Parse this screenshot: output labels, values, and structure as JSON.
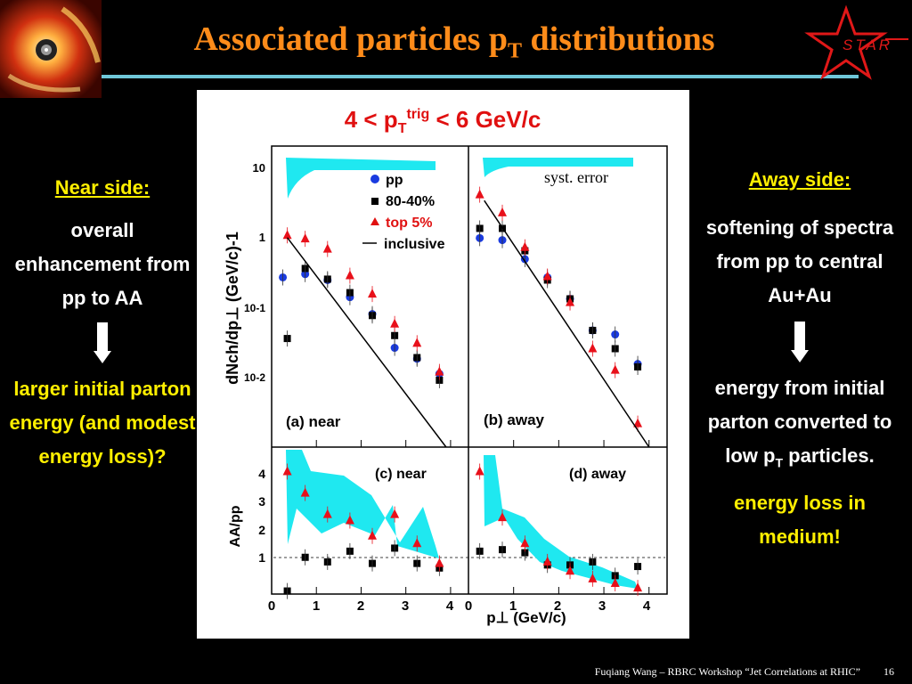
{
  "title": {
    "main": "Associated particles p",
    "sub": "T",
    "rest": " distributions"
  },
  "logo_text": "STAR",
  "near_side": {
    "heading": "Near side:",
    "text1": "overall enhancement from pp to AA",
    "text2": "larger initial parton energy (and modest energy loss)?"
  },
  "away_side": {
    "heading": "Away side:",
    "text1": "softening of spectra from pp to central Au+Au",
    "text2a": "energy from initial parton converted to low p",
    "text2sub": "T",
    "text2b": " particles.",
    "text3": "energy loss in medium!"
  },
  "footer": {
    "text": "Fuqiang Wang – RBRC Workshop “Jet Correlations at RHIC”",
    "page": "16"
  },
  "figure": {
    "title_main": "4 < p",
    "title_sub": "T",
    "title_sup": "trig",
    "title_rest": " < 6 GeV/c",
    "syst_label": "syst. error",
    "ylabel_top": "dNch/dp⊥ (GeV/c)-1",
    "ylabel_bottom": "AA/pp",
    "xlabel": "p⊥ (GeV/c)",
    "panel_labels": [
      "(a) near",
      "(b) away",
      "(c) near",
      "(d) away"
    ],
    "top_ticks": [
      "10",
      "1",
      "10-1",
      "10-2"
    ],
    "bottom_ticks": [
      "1",
      "2",
      "3",
      "4"
    ],
    "x_ticks": [
      "0",
      "1",
      "2",
      "3",
      "4"
    ],
    "legend": [
      "pp",
      "80-40%",
      "top 5%",
      "inclusive"
    ],
    "colors": {
      "pp": "#1a3be0",
      "mid": "#000000",
      "top5": "#e8101a",
      "band": "#1fe8f0"
    }
  },
  "chart_data": [
    {
      "type": "scatter",
      "panel": "(a) near",
      "xlabel": "p⊥ (GeV/c)",
      "ylabel": "dNch/dp⊥ (GeV/c)-1",
      "yscale": "log",
      "xlim": [
        0,
        4.4
      ],
      "ylim": [
        0.0015,
        25
      ],
      "series": [
        {
          "name": "pp",
          "x": [
            0.25,
            0.75,
            1.25,
            1.75,
            2.25,
            2.75,
            3.25,
            3.75
          ],
          "y": [
            0.36,
            0.4,
            0.33,
            0.19,
            0.11,
            0.037,
            0.026,
            0.016
          ]
        },
        {
          "name": "80-40%",
          "x": [
            0.35,
            0.75,
            1.25,
            1.75,
            2.25,
            2.75,
            3.25,
            3.75
          ],
          "y": [
            0.05,
            0.48,
            0.34,
            0.22,
            0.105,
            0.055,
            0.027,
            0.013
          ]
        },
        {
          "name": "top 5%",
          "x": [
            0.35,
            0.75,
            1.25,
            1.75,
            2.25,
            2.75,
            3.25,
            3.75
          ],
          "y": [
            1.4,
            1.25,
            0.9,
            0.38,
            0.21,
            0.08,
            0.043,
            0.017
          ]
        },
        {
          "name": "inclusive",
          "type": "line",
          "x": [
            0.35,
            3.9
          ],
          "y": [
            1.3,
            0.0015
          ]
        }
      ]
    },
    {
      "type": "scatter",
      "panel": "(b) away",
      "xlabel": "p⊥ (GeV/c)",
      "yscale": "log",
      "xlim": [
        0,
        4.4
      ],
      "ylim": [
        0.0015,
        25
      ],
      "series": [
        {
          "name": "pp",
          "x": [
            0.25,
            0.75,
            1.25,
            1.75,
            2.25,
            2.75,
            3.25,
            3.75
          ],
          "y": [
            1.28,
            1.2,
            0.65,
            0.36,
            0.18,
            0.065,
            0.057,
            0.022
          ]
        },
        {
          "name": "80-40%",
          "x": [
            0.25,
            0.75,
            1.25,
            1.75,
            2.25,
            2.75,
            3.25,
            3.75
          ],
          "y": [
            1.75,
            1.75,
            0.85,
            0.33,
            0.18,
            0.065,
            0.036,
            0.02
          ]
        },
        {
          "name": "top 5%",
          "x": [
            0.25,
            0.75,
            1.25,
            1.75,
            2.25,
            2.75,
            3.25,
            3.75
          ],
          "y": [
            5.2,
            2.9,
            0.95,
            0.37,
            0.16,
            0.036,
            0.018,
            0.0032
          ]
        },
        {
          "name": "inclusive",
          "type": "line",
          "x": [
            0.35,
            4.0
          ],
          "y": [
            4.3,
            0.0015
          ]
        }
      ]
    },
    {
      "type": "scatter",
      "panel": "(c) near",
      "ylabel": "AA/pp",
      "xlim": [
        0,
        4.4
      ],
      "ylim": [
        0,
        4.8
      ],
      "series": [
        {
          "name": "80-40%",
          "x": [
            0.35,
            0.75,
            1.25,
            1.75,
            2.25,
            2.75,
            3.25,
            3.75
          ],
          "y": [
            0.1,
            1.2,
            1.05,
            1.4,
            1.0,
            1.5,
            1.0,
            0.85
          ]
        },
        {
          "name": "top 5%",
          "x": [
            0.35,
            0.75,
            1.25,
            1.75,
            2.25,
            2.75,
            3.25,
            3.75
          ],
          "y": [
            4.0,
            3.3,
            2.6,
            2.4,
            1.9,
            2.6,
            1.65,
            1.0
          ]
        }
      ]
    },
    {
      "type": "scatter",
      "panel": "(d) away",
      "xlim": [
        0,
        4.4
      ],
      "ylim": [
        0,
        4.8
      ],
      "series": [
        {
          "name": "80-40%",
          "x": [
            0.25,
            0.75,
            1.25,
            1.75,
            2.25,
            2.75,
            3.25,
            3.75
          ],
          "y": [
            1.4,
            1.45,
            1.35,
            0.95,
            0.95,
            1.05,
            0.6,
            0.9
          ]
        },
        {
          "name": "top 5%",
          "x": [
            0.25,
            0.75,
            1.25,
            1.75,
            2.25,
            2.75,
            3.25,
            3.75
          ],
          "y": [
            4.0,
            2.5,
            1.65,
            1.05,
            0.75,
            0.5,
            0.35,
            0.2
          ]
        }
      ]
    }
  ]
}
